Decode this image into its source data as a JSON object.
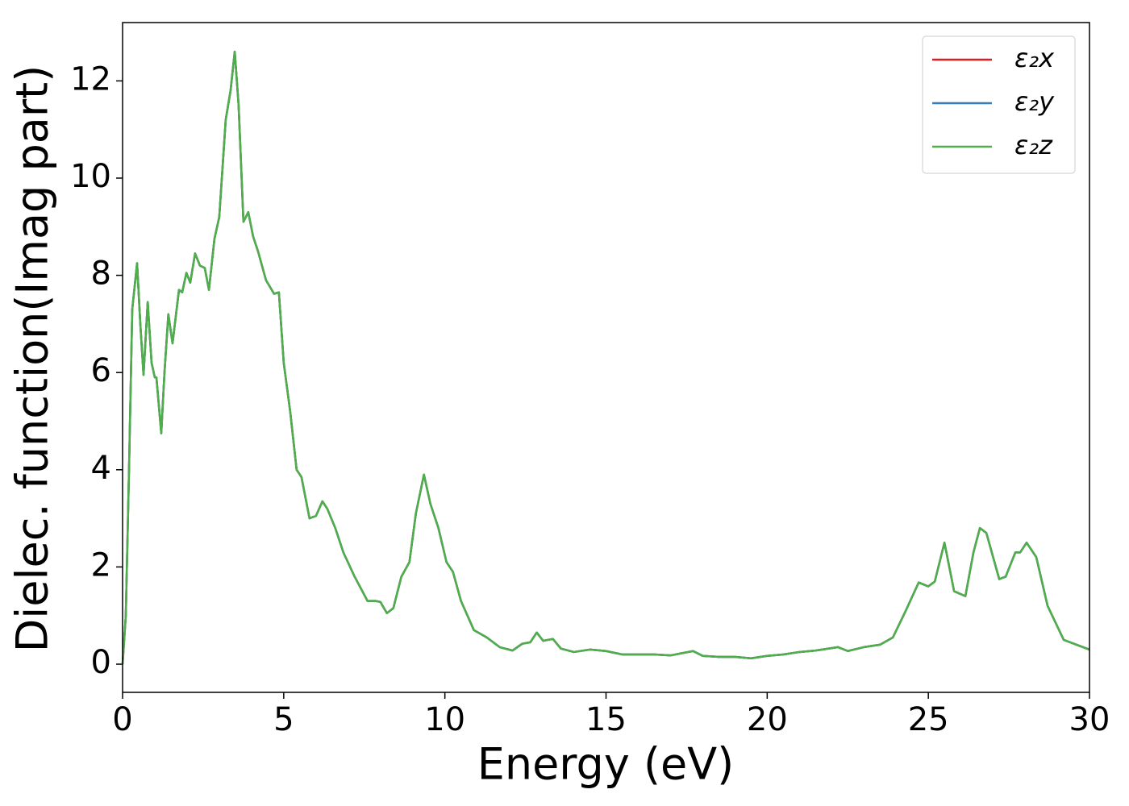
{
  "chart_data": {
    "type": "line",
    "xlabel": "Energy (eV)",
    "ylabel": "Dielec. function(Imag part)",
    "xlim": [
      0,
      30
    ],
    "ylim": [
      -0.58,
      13.2
    ],
    "xticks": [
      0,
      5,
      10,
      15,
      20,
      25,
      30
    ],
    "yticks": [
      0,
      2,
      4,
      6,
      8,
      10,
      12
    ],
    "legend": "upper right",
    "x": [
      0,
      0.1,
      0.2,
      0.3,
      0.45,
      0.55,
      0.65,
      0.78,
      0.9,
      1.0,
      1.05,
      1.2,
      1.3,
      1.42,
      1.55,
      1.75,
      1.85,
      1.98,
      2.1,
      2.25,
      2.4,
      2.55,
      2.68,
      2.85,
      3.0,
      3.2,
      3.35,
      3.48,
      3.6,
      3.75,
      3.9,
      4.05,
      4.2,
      4.45,
      4.7,
      4.85,
      5.0,
      5.2,
      5.4,
      5.55,
      5.8,
      6.0,
      6.2,
      6.35,
      6.6,
      6.85,
      7.2,
      7.6,
      7.85,
      8.0,
      8.2,
      8.4,
      8.65,
      8.9,
      9.1,
      9.35,
      9.55,
      9.8,
      10.05,
      10.25,
      10.5,
      10.9,
      11.3,
      11.7,
      12.1,
      12.4,
      12.65,
      12.85,
      13.05,
      13.35,
      13.6,
      14.0,
      14.5,
      15.0,
      15.5,
      16.0,
      16.5,
      17.0,
      17.7,
      18.0,
      18.5,
      19.0,
      19.5,
      20.0,
      20.5,
      21.0,
      21.5,
      22.2,
      22.5,
      23.0,
      23.5,
      23.9,
      24.3,
      24.7,
      25.0,
      25.2,
      25.5,
      25.8,
      26.15,
      26.4,
      26.6,
      26.8,
      27.2,
      27.4,
      27.7,
      27.85,
      28.05,
      28.35,
      28.7,
      29.2,
      29.6,
      30.0
    ],
    "series": [
      {
        "name": "ε₂x",
        "color": "#e41a1c",
        "values": [
          0,
          1.0,
          4.0,
          7.3,
          8.25,
          7.0,
          5.95,
          7.45,
          6.2,
          5.9,
          5.9,
          4.75,
          6.0,
          7.2,
          6.6,
          7.7,
          7.65,
          8.05,
          7.85,
          8.45,
          8.2,
          8.15,
          7.7,
          8.75,
          9.2,
          11.2,
          11.8,
          12.6,
          11.5,
          9.1,
          9.3,
          8.8,
          8.5,
          7.9,
          7.62,
          7.65,
          6.2,
          5.2,
          4.0,
          3.85,
          3.0,
          3.05,
          3.35,
          3.2,
          2.8,
          2.3,
          1.8,
          1.3,
          1.3,
          1.28,
          1.05,
          1.15,
          1.8,
          2.1,
          3.1,
          3.9,
          3.3,
          2.8,
          2.1,
          1.9,
          1.3,
          0.7,
          0.55,
          0.35,
          0.28,
          0.42,
          0.45,
          0.65,
          0.48,
          0.52,
          0.32,
          0.25,
          0.3,
          0.27,
          0.2,
          0.2,
          0.2,
          0.18,
          0.27,
          0.17,
          0.15,
          0.15,
          0.12,
          0.17,
          0.2,
          0.25,
          0.28,
          0.35,
          0.27,
          0.35,
          0.4,
          0.55,
          1.1,
          1.68,
          1.6,
          1.7,
          2.5,
          1.5,
          1.4,
          2.3,
          2.8,
          2.7,
          1.75,
          1.8,
          2.3,
          2.3,
          2.5,
          2.2,
          1.2,
          0.5,
          0.4,
          0.3
        ]
      },
      {
        "name": "ε₂y",
        "color": "#377eb8",
        "values": [
          0,
          1.0,
          4.0,
          7.3,
          8.25,
          7.0,
          5.95,
          7.45,
          6.2,
          5.9,
          5.9,
          4.75,
          6.0,
          7.2,
          6.6,
          7.7,
          7.65,
          8.05,
          7.85,
          8.45,
          8.2,
          8.15,
          7.7,
          8.75,
          9.2,
          11.2,
          11.8,
          12.6,
          11.5,
          9.1,
          9.3,
          8.8,
          8.5,
          7.9,
          7.62,
          7.65,
          6.2,
          5.2,
          4.0,
          3.85,
          3.0,
          3.05,
          3.35,
          3.2,
          2.8,
          2.3,
          1.8,
          1.3,
          1.3,
          1.28,
          1.05,
          1.15,
          1.8,
          2.1,
          3.1,
          3.9,
          3.3,
          2.8,
          2.1,
          1.9,
          1.3,
          0.7,
          0.55,
          0.35,
          0.28,
          0.42,
          0.45,
          0.65,
          0.48,
          0.52,
          0.32,
          0.25,
          0.3,
          0.27,
          0.2,
          0.2,
          0.2,
          0.18,
          0.27,
          0.17,
          0.15,
          0.15,
          0.12,
          0.17,
          0.2,
          0.25,
          0.28,
          0.35,
          0.27,
          0.35,
          0.4,
          0.55,
          1.1,
          1.68,
          1.6,
          1.7,
          2.5,
          1.5,
          1.4,
          2.3,
          2.8,
          2.7,
          1.75,
          1.8,
          2.3,
          2.3,
          2.5,
          2.2,
          1.2,
          0.5,
          0.4,
          0.3
        ]
      },
      {
        "name": "ε₂z",
        "color": "#4daf4a",
        "values": [
          0,
          1.0,
          4.0,
          7.3,
          8.25,
          7.0,
          5.95,
          7.45,
          6.2,
          5.9,
          5.9,
          4.75,
          6.0,
          7.2,
          6.6,
          7.7,
          7.65,
          8.05,
          7.85,
          8.45,
          8.2,
          8.15,
          7.7,
          8.75,
          9.2,
          11.2,
          11.8,
          12.6,
          11.5,
          9.1,
          9.3,
          8.8,
          8.5,
          7.9,
          7.62,
          7.65,
          6.2,
          5.2,
          4.0,
          3.85,
          3.0,
          3.05,
          3.35,
          3.2,
          2.8,
          2.3,
          1.8,
          1.3,
          1.3,
          1.28,
          1.05,
          1.15,
          1.8,
          2.1,
          3.1,
          3.9,
          3.3,
          2.8,
          2.1,
          1.9,
          1.3,
          0.7,
          0.55,
          0.35,
          0.28,
          0.42,
          0.45,
          0.65,
          0.48,
          0.52,
          0.32,
          0.25,
          0.3,
          0.27,
          0.2,
          0.2,
          0.2,
          0.18,
          0.27,
          0.17,
          0.15,
          0.15,
          0.12,
          0.17,
          0.2,
          0.25,
          0.28,
          0.35,
          0.27,
          0.35,
          0.4,
          0.55,
          1.1,
          1.68,
          1.6,
          1.7,
          2.5,
          1.5,
          1.4,
          2.3,
          2.8,
          2.7,
          1.75,
          1.8,
          2.3,
          2.3,
          2.5,
          2.2,
          1.2,
          0.5,
          0.4,
          0.3
        ]
      }
    ]
  }
}
